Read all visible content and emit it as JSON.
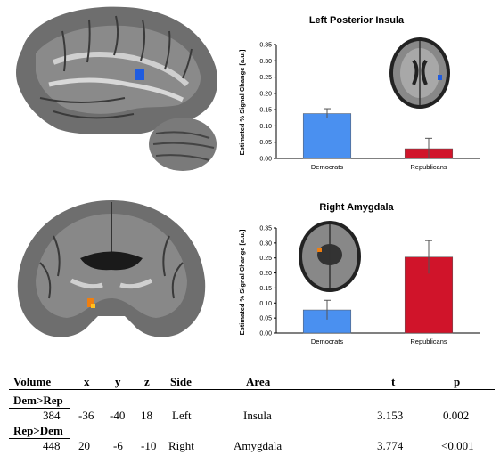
{
  "charts": [
    {
      "title": "Left Posterior Insula",
      "ylabel": "Estimated % Signal Change [a.u.]",
      "yticks": [
        "0.00",
        "0.05",
        "0.10",
        "0.15",
        "0.20",
        "0.25",
        "0.30",
        "0.35"
      ],
      "categories": [
        "Democrats",
        "Republicans"
      ]
    },
    {
      "title": "Right Amygdala",
      "ylabel": "Estimated % Signal Change [a.u.]",
      "yticks": [
        "0.00",
        "0.05",
        "0.10",
        "0.15",
        "0.20",
        "0.25",
        "0.30",
        "0.35"
      ],
      "categories": [
        "Democrats",
        "Republicans"
      ]
    }
  ],
  "chart_data": [
    {
      "type": "bar",
      "title": "Left Posterior Insula",
      "ylabel": "Estimated % Signal Change [a.u.]",
      "categories": [
        "Democrats",
        "Republicans"
      ],
      "values": [
        0.138,
        0.03
      ],
      "errors": [
        0.015,
        0.032
      ],
      "ylim": [
        0,
        0.35
      ],
      "colors": [
        "#4a90f0",
        "#d0142a"
      ]
    },
    {
      "type": "bar",
      "title": "Right Amygdala",
      "ylabel": "Estimated % Signal Change [a.u.]",
      "categories": [
        "Democrats",
        "Republicans"
      ],
      "values": [
        0.077,
        0.253
      ],
      "errors": [
        0.032,
        0.055
      ],
      "ylim": [
        0,
        0.35
      ],
      "colors": [
        "#4a90f0",
        "#d0142a"
      ]
    }
  ],
  "table": {
    "headers": [
      "Volume",
      "x",
      "y",
      "z",
      "Side",
      "Area",
      "t",
      "p"
    ],
    "groups": [
      {
        "label": "Dem>Rep",
        "row": [
          "384",
          "-36",
          "-40",
          "18",
          "Left",
          "Insula",
          "3.153",
          "0.002"
        ]
      },
      {
        "label": "Rep>Dem",
        "row": [
          "448",
          "20",
          "-6",
          "-10",
          "Right",
          "Amygdala",
          "3.774",
          "<0.001"
        ]
      }
    ]
  }
}
